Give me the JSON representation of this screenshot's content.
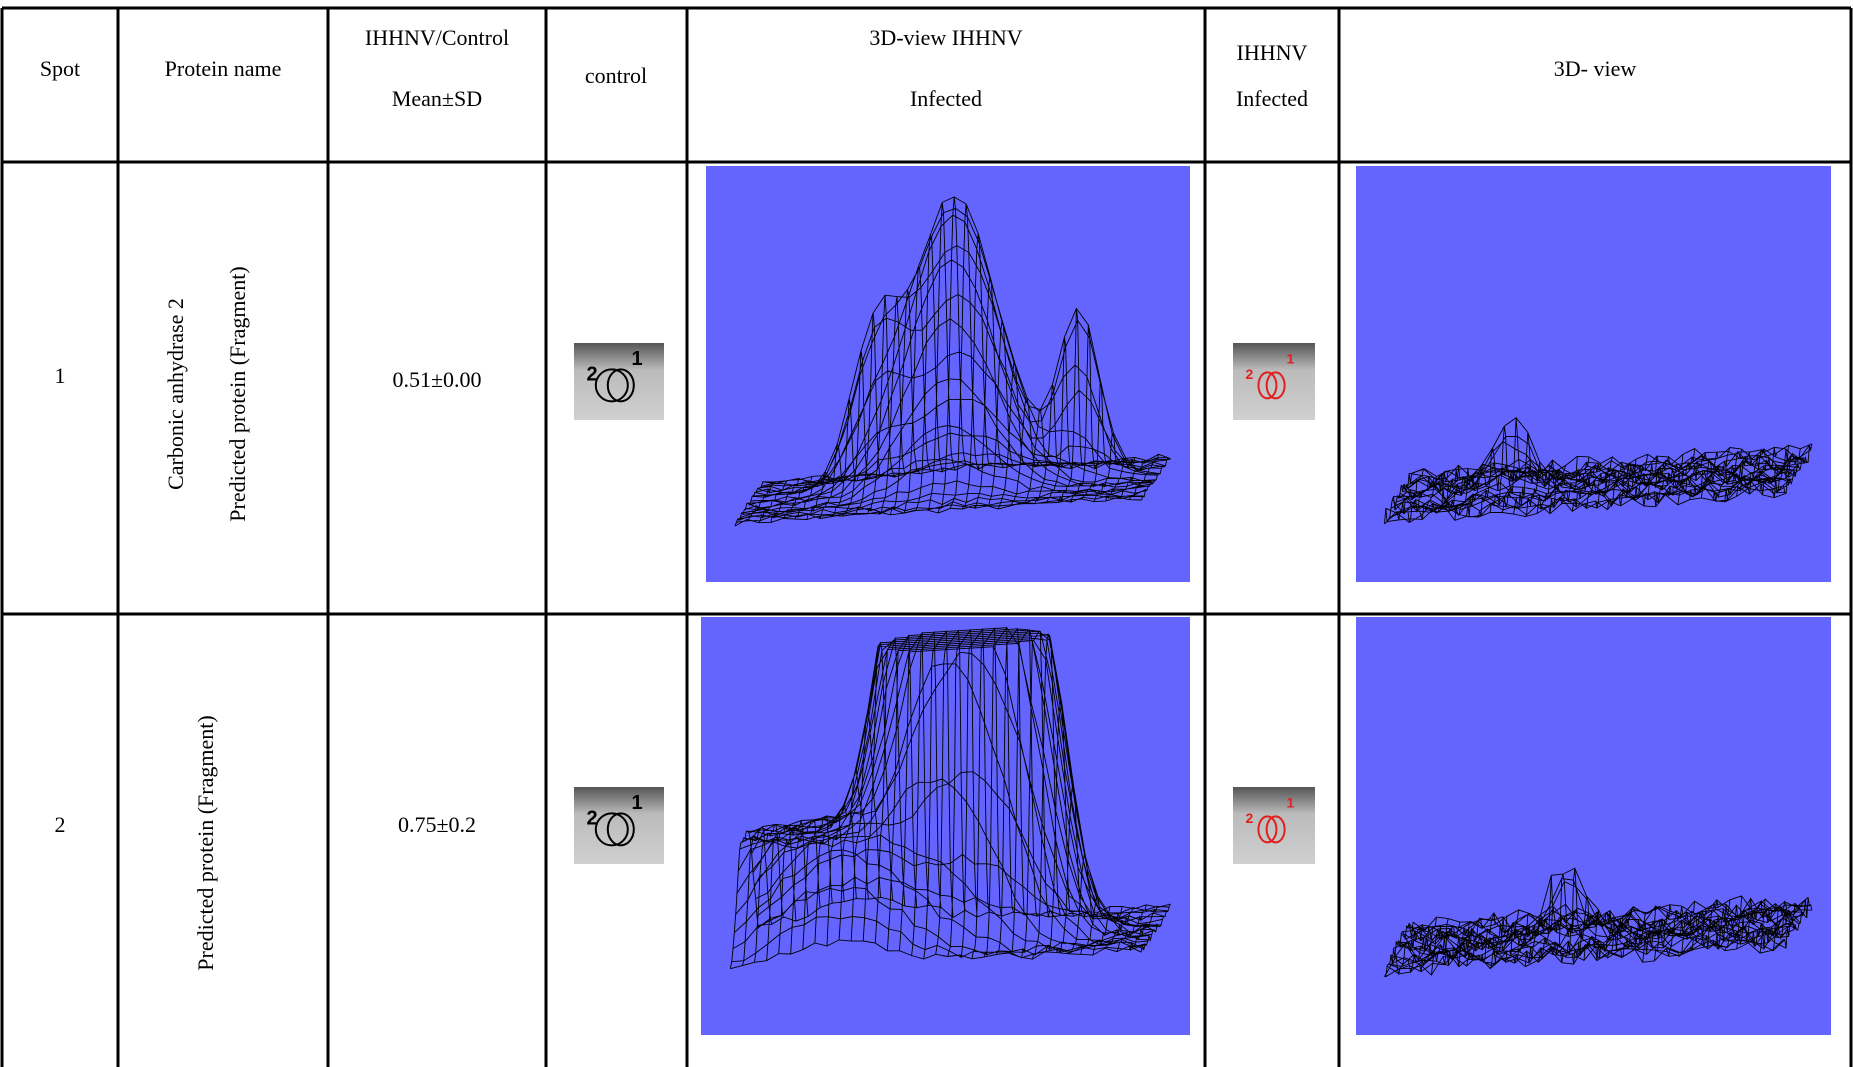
{
  "table": {
    "header": [
      [
        "Spot"
      ],
      [
        "Protein name"
      ],
      [
        "IHHNV/Control",
        "Mean±SD"
      ],
      [
        "control"
      ],
      [
        "3D-view IHHNV",
        "Infected"
      ],
      [
        "IHHNV",
        "Infected"
      ],
      [
        "3D- view"
      ]
    ],
    "rows": [
      {
        "spot": "1",
        "protein_name": [
          "Carbonic anhydrase 2",
          "Predicted protein (Fragment)"
        ],
        "ratio": "0.51±0.00",
        "control_labels": [
          "2",
          "1"
        ],
        "infected_labels": [
          "2",
          "1"
        ]
      },
      {
        "spot": "2",
        "protein_name": [
          "Predicted protein (Fragment)"
        ],
        "ratio": "0.75±0.2",
        "control_labels": [
          "2",
          "1"
        ],
        "infected_labels": [
          "2",
          "1"
        ]
      }
    ]
  }
}
